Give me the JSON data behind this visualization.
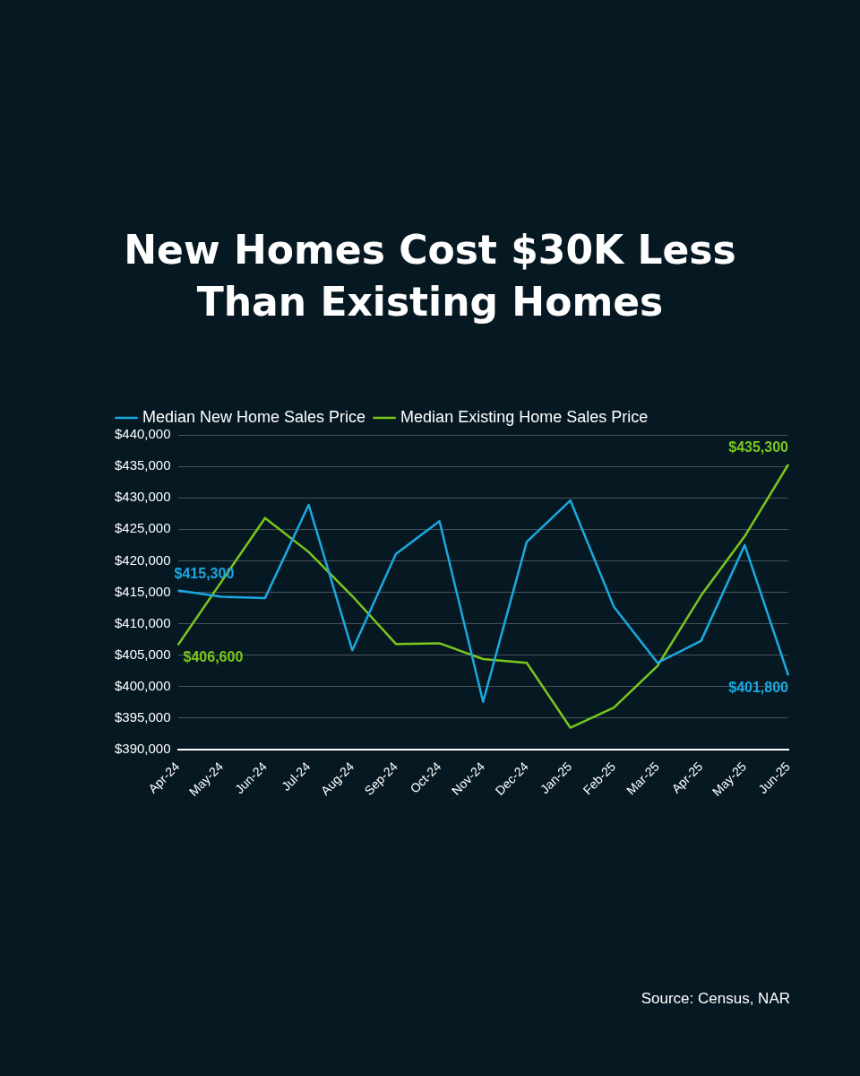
{
  "chart_data": {
    "type": "line",
    "title": "New Homes Cost $30K Less Than Existing Homes",
    "categories": [
      "Apr-24",
      "May-24",
      "Jun-24",
      "Jul-24",
      "Aug-24",
      "Sep-24",
      "Oct-24",
      "Nov-24",
      "Dec-24",
      "Jan-25",
      "Feb-25",
      "Mar-25",
      "Apr-25",
      "May-25",
      "Jun-25"
    ],
    "series": [
      {
        "name": "Median New Home Sales Price",
        "color": "#1ba8e0",
        "values": [
          415300,
          414300,
          414100,
          428900,
          405800,
          421100,
          426300,
          397600,
          423000,
          429600,
          412700,
          403800,
          407300,
          422500,
          401800
        ],
        "value_labels": [
          "$415,300",
          null,
          null,
          null,
          null,
          null,
          null,
          null,
          null,
          null,
          null,
          null,
          null,
          null,
          "$401,800"
        ]
      },
      {
        "name": "Median Existing Home Sales Price",
        "color": "#7ac71c",
        "values": [
          406600,
          416700,
          426800,
          421400,
          414400,
          406800,
          406900,
          404400,
          403800,
          393500,
          396700,
          403300,
          414500,
          423900,
          435300
        ],
        "value_labels": [
          "$406,600",
          null,
          null,
          null,
          null,
          null,
          null,
          null,
          null,
          null,
          null,
          null,
          null,
          null,
          "$435,300"
        ]
      }
    ],
    "ylim": [
      390000,
      440000
    ],
    "yticks": [
      {
        "value": 390000,
        "label": "$390,000"
      },
      {
        "value": 395000,
        "label": "$395,000"
      },
      {
        "value": 400000,
        "label": "$400,000"
      },
      {
        "value": 405000,
        "label": "$405,000"
      },
      {
        "value": 410000,
        "label": "$410,000"
      },
      {
        "value": 415000,
        "label": "$415,000"
      },
      {
        "value": 420000,
        "label": "$420,000"
      },
      {
        "value": 425000,
        "label": "$425,000"
      },
      {
        "value": 430000,
        "label": "$430,000"
      },
      {
        "value": 435000,
        "label": "$435,000"
      },
      {
        "value": 440000,
        "label": "$440,000"
      }
    ],
    "grid": "y",
    "legend": "top",
    "marker": "none",
    "line_style": "solid",
    "annotations": [
      "Source: Census, NAR"
    ]
  }
}
